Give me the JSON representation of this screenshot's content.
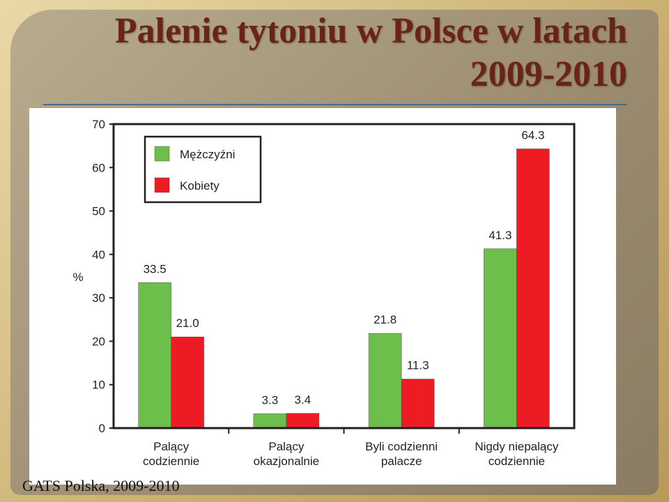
{
  "title": "Palenie tytoniu w Polsce w latach 2009-2010",
  "source": "GATS Polska, 2009-2010",
  "chart_data": {
    "type": "bar",
    "y_label": "%",
    "categories": [
      "Palący\ncodziennie",
      "Palący\nokazjonalnie",
      "Byli codzienni\npalacze",
      "Nigdy niepalący\ncodziennie"
    ],
    "series": [
      {
        "name": "Mężczyźni",
        "color": "#6dbf4b",
        "values": [
          33.5,
          3.3,
          21.8,
          41.3
        ],
        "value_labels": [
          "33.5",
          "3.3",
          "21.8",
          "41.3"
        ]
      },
      {
        "name": "Kobiety",
        "color": "#ed1c24",
        "values": [
          21.0,
          3.4,
          11.3,
          64.3
        ],
        "value_labels": [
          "21.0",
          "3.4",
          "11.3",
          "64.3"
        ]
      }
    ],
    "ylim": [
      0,
      70
    ],
    "yticks": [
      0,
      10,
      20,
      30,
      40,
      50,
      60,
      70
    ],
    "legend": "upper-left"
  }
}
